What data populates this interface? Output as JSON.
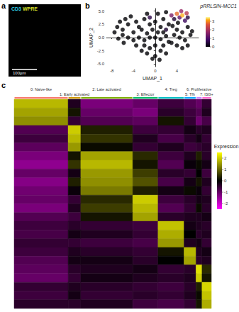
{
  "panel_labels": [
    "a",
    "b",
    "c"
  ],
  "image": {
    "channels": [
      {
        "name": "CD3",
        "color": "#2fd0e6"
      },
      {
        "name": "WPRE",
        "color": "#d8e22a"
      }
    ],
    "scale_bar": "100µm"
  },
  "chart_data": [
    {
      "type": "scatter",
      "title": "pRRLSIN-MCC1",
      "x_label": "UMAP_1",
      "y_label": "UMAP_2",
      "xlim": [
        -9,
        8
      ],
      "xticks": [
        -8,
        -4,
        0,
        4
      ],
      "ylim": [
        -5.5,
        5.5
      ],
      "yticks": [
        {
          "value": -5,
          "label": "-5.0"
        },
        {
          "value": -2.5,
          "label": "-2.5"
        },
        {
          "value": 0,
          "label": "0.0"
        },
        {
          "value": 2.5,
          "label": "2.5"
        },
        {
          "value": 5,
          "label": "5.0"
        }
      ],
      "color_range": [
        0,
        3.5
      ],
      "color_ticks": [
        0,
        1,
        2,
        3
      ],
      "points": [
        [
          -7,
          2,
          0
        ],
        [
          -6.5,
          3,
          0
        ],
        [
          -6,
          1.5,
          0
        ],
        [
          -5.5,
          3.5,
          0
        ],
        [
          -5,
          2.5,
          0
        ],
        [
          -4.5,
          4,
          0
        ],
        [
          -4,
          1,
          0
        ],
        [
          -3.5,
          3,
          0
        ],
        [
          -3,
          2,
          0
        ],
        [
          -6,
          0.5,
          0
        ],
        [
          -5,
          0,
          0
        ],
        [
          -4,
          -0.5,
          0
        ],
        [
          -7.5,
          1,
          0
        ],
        [
          -6.8,
          -0.2,
          0
        ],
        [
          -5.8,
          -1,
          0
        ],
        [
          -2,
          3.5,
          0
        ],
        [
          -1.5,
          4.5,
          0
        ],
        [
          -1,
          2.5,
          0
        ],
        [
          0,
          3,
          0
        ],
        [
          0.5,
          4.5,
          0
        ],
        [
          1,
          2,
          0
        ],
        [
          1.5,
          3.5,
          0
        ],
        [
          2,
          4.8,
          0
        ],
        [
          2.5,
          2.5,
          0
        ],
        [
          -0.5,
          1.5,
          0
        ],
        [
          0.5,
          1,
          0
        ],
        [
          -2.5,
          1.5,
          0
        ],
        [
          4.2,
          2.8,
          0
        ],
        [
          3.2,
          2.2,
          0
        ],
        [
          4,
          1.5,
          0
        ],
        [
          5,
          1,
          0
        ],
        [
          6,
          2,
          0
        ],
        [
          6.5,
          0.5,
          0
        ],
        [
          5.5,
          -0.5,
          0
        ],
        [
          4.5,
          0,
          0
        ],
        [
          6,
          -1.5,
          0
        ],
        [
          5,
          -2,
          0
        ],
        [
          3.5,
          0.5,
          0
        ],
        [
          3,
          -1,
          0
        ],
        [
          4,
          -1.5,
          0
        ],
        [
          6.8,
          1.2,
          0
        ],
        [
          -3,
          0,
          0
        ],
        [
          -2,
          -0.5,
          0
        ],
        [
          -1,
          0,
          0
        ],
        [
          0,
          0,
          0
        ],
        [
          1,
          -0.3,
          0
        ],
        [
          2,
          0.3,
          0
        ],
        [
          -1.5,
          0.8,
          0
        ],
        [
          1.5,
          1,
          0
        ],
        [
          2.5,
          -0.8,
          0
        ],
        [
          -2,
          -1.5,
          0
        ],
        [
          -1,
          -2,
          0
        ],
        [
          0,
          -1.5,
          0
        ],
        [
          1,
          -2.5,
          0
        ],
        [
          -1.5,
          -3,
          0
        ],
        [
          0,
          -3.5,
          0
        ],
        [
          1.5,
          -1.5,
          0
        ],
        [
          -0.5,
          -4,
          0
        ],
        [
          0.8,
          -4.2,
          0
        ],
        [
          2,
          -3,
          0
        ],
        [
          -2.5,
          -2.5,
          0
        ],
        [
          -3.5,
          -1.5,
          0
        ],
        [
          -1,
          3.8,
          0.6
        ],
        [
          2,
          1.5,
          0.4
        ],
        [
          3.5,
          3.5,
          0.4
        ],
        [
          6,
          3.8,
          0.5
        ],
        [
          5.5,
          3.2,
          0.8
        ],
        [
          4.5,
          3.8,
          1.2
        ],
        [
          3,
          4.2,
          1.5
        ],
        [
          4.8,
          5,
          1.8
        ],
        [
          5.8,
          4.6,
          2.2
        ],
        [
          4,
          4.5,
          2.8
        ],
        [
          5,
          4.2,
          3.2
        ]
      ]
    },
    {
      "type": "heatmap",
      "tick_labels": false,
      "categories": [
        "0: Naive-like",
        "1: Early activated",
        "2: Late activated",
        "3: Effector",
        "4: Treg",
        "5: Tfh",
        "6: Proliferative",
        "7: ISG+"
      ],
      "cell_counts": [
        810,
        190,
        780,
        380,
        390,
        180,
        90,
        140
      ],
      "colors": [
        "#f8766d",
        "#cd9600",
        "#7cae00",
        "#00be67",
        "#00bfc4",
        "#00a9ff",
        "#c77cff",
        "#ff61cc"
      ],
      "colorbar_title": "Expression",
      "color_range": [
        -2.5,
        2.5
      ],
      "color_ticks": [
        2,
        1,
        0,
        -1,
        -2
      ],
      "values": [
        [
          1.8,
          -0.3,
          -1.2,
          -1.0,
          -0.6,
          -0.8,
          -1.0,
          -0.5
        ],
        [
          1.6,
          0.2,
          -1.0,
          -1.2,
          -0.4,
          -0.6,
          -0.8,
          -0.3
        ],
        [
          1.4,
          -0.5,
          -0.8,
          -0.9,
          0.2,
          -0.5,
          -1.1,
          -0.7
        ],
        [
          -0.8,
          2.0,
          0.3,
          -0.6,
          -0.5,
          -0.2,
          -0.4,
          -0.3
        ],
        [
          -0.6,
          1.8,
          0.5,
          -0.3,
          -0.7,
          -0.4,
          -0.2,
          -0.5
        ],
        [
          -0.9,
          1.5,
          0.1,
          -0.5,
          -0.3,
          -0.6,
          -0.5,
          -0.4
        ],
        [
          -1.2,
          0.2,
          1.6,
          0.4,
          -0.6,
          -0.3,
          0.3,
          -0.4
        ],
        [
          -1.4,
          0.5,
          1.8,
          0.2,
          -0.8,
          -0.1,
          0.1,
          -0.2
        ],
        [
          -1.0,
          -0.2,
          1.5,
          0.6,
          -0.4,
          -0.5,
          0.0,
          -0.6
        ],
        [
          -1.3,
          0.3,
          1.4,
          0.8,
          -0.7,
          -0.2,
          0.2,
          -0.3
        ],
        [
          -1.1,
          -0.1,
          1.2,
          0.3,
          -0.2,
          0.1,
          -0.1,
          -0.5
        ],
        [
          -1.0,
          -0.5,
          0.4,
          2.0,
          -0.6,
          -0.4,
          -0.2,
          -0.3
        ],
        [
          -1.2,
          -0.3,
          0.6,
          1.8,
          -0.8,
          -0.5,
          0.1,
          -0.4
        ],
        [
          -0.8,
          -0.6,
          0.2,
          1.6,
          -0.4,
          -0.3,
          -0.3,
          -0.2
        ],
        [
          -0.6,
          -0.4,
          -0.5,
          -0.6,
          1.9,
          -0.2,
          -0.3,
          -0.4
        ],
        [
          -0.7,
          -0.2,
          -0.3,
          -0.5,
          1.7,
          0.0,
          -0.4,
          -0.3
        ],
        [
          -0.5,
          -0.5,
          -0.6,
          -0.7,
          1.5,
          -0.3,
          -0.2,
          -0.5
        ],
        [
          -0.6,
          -0.3,
          -0.4,
          -0.5,
          0.2,
          1.8,
          -0.3,
          -0.2
        ],
        [
          -0.8,
          -0.2,
          -0.2,
          -0.4,
          0.0,
          1.6,
          -0.4,
          -0.3
        ],
        [
          -0.9,
          -0.4,
          -0.3,
          -0.2,
          -0.5,
          -0.4,
          2.2,
          0.4
        ],
        [
          -1.0,
          -0.5,
          -0.2,
          -0.3,
          -0.4,
          -0.3,
          2.0,
          0.2
        ],
        [
          -0.5,
          -0.3,
          -0.4,
          -0.5,
          -0.6,
          -0.4,
          0.3,
          2.1
        ],
        [
          -0.6,
          -0.2,
          -0.5,
          -0.4,
          -0.5,
          -0.3,
          0.1,
          1.9
        ],
        [
          -0.4,
          -0.4,
          -0.3,
          -0.6,
          -0.7,
          -0.5,
          0.2,
          1.7
        ]
      ]
    }
  ]
}
